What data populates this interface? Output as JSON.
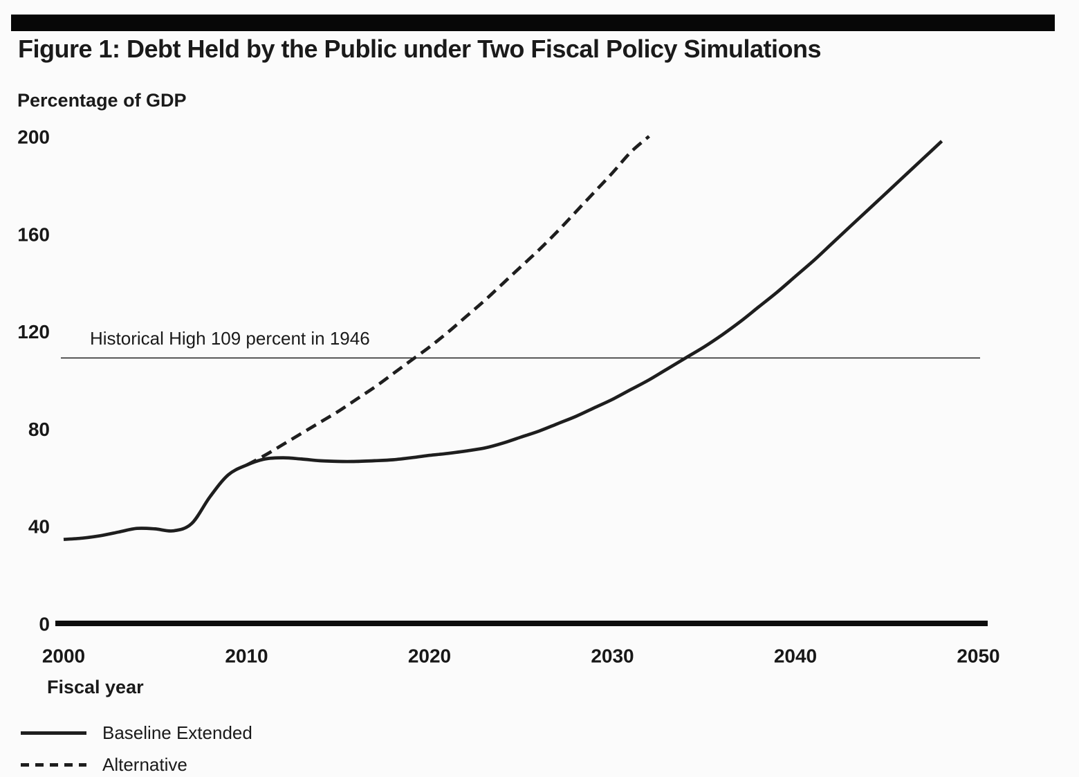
{
  "header": {
    "title": "Figure 1: Debt Held by the Public under Two Fiscal Policy Simulations"
  },
  "chart": {
    "y_axis_title": "Percentage of GDP",
    "x_axis_title": "Fiscal year",
    "annotation_text": "Historical High 109 percent in 1946",
    "ink_color": "#1e1e1e",
    "background_color": "#fbfbfb"
  },
  "legend": {
    "items": [
      {
        "label": "Baseline Extended",
        "style": "solid"
      },
      {
        "label": "Alternative",
        "style": "dashed"
      }
    ]
  },
  "chart_data": {
    "type": "line",
    "title": "Figure 1: Debt Held by the Public under Two Fiscal Policy Simulations",
    "xlabel": "Fiscal year",
    "ylabel": "Percentage of GDP",
    "xlim": [
      2000,
      2050
    ],
    "ylim": [
      0,
      200
    ],
    "x_ticks": [
      2000,
      2010,
      2020,
      2030,
      2040,
      2050
    ],
    "y_ticks": [
      0,
      40,
      80,
      120,
      160,
      200
    ],
    "grid": false,
    "legend_position": "bottom-left",
    "annotation": {
      "text": "Historical High 109 percent in 1946",
      "value": 109
    },
    "series": [
      {
        "name": "Baseline Extended",
        "style": "solid",
        "x": [
          2000,
          2001,
          2002,
          2003,
          2004,
          2005,
          2006,
          2007,
          2008,
          2009,
          2010,
          2011,
          2012,
          2013,
          2014,
          2015,
          2016,
          2017,
          2018,
          2019,
          2020,
          2021,
          2022,
          2023,
          2024,
          2025,
          2026,
          2027,
          2028,
          2029,
          2030,
          2031,
          2032,
          2033,
          2034,
          2035,
          2036,
          2037,
          2038,
          2039,
          2040,
          2041,
          2042,
          2043,
          2044,
          2045,
          2046,
          2047,
          2048
        ],
        "y": [
          34.5,
          35,
          36,
          37.5,
          39,
          38.8,
          38,
          41,
          52,
          61,
          65,
          67.5,
          68,
          67.5,
          66.8,
          66.5,
          66.5,
          66.8,
          67.2,
          68,
          69,
          69.8,
          70.8,
          72,
          74,
          76.5,
          79,
          82,
          85,
          88.5,
          92,
          96,
          100,
          104.5,
          109,
          113.5,
          118.5,
          124,
          130,
          136,
          142.5,
          149,
          156,
          163,
          170,
          177,
          184,
          191,
          198
        ]
      },
      {
        "name": "Alternative",
        "style": "dashed",
        "x": [
          2010,
          2011,
          2012,
          2013,
          2014,
          2015,
          2016,
          2017,
          2018,
          2019,
          2020,
          2021,
          2022,
          2023,
          2024,
          2025,
          2026,
          2027,
          2028,
          2029,
          2030,
          2031,
          2032
        ],
        "y": [
          65,
          69,
          73.5,
          78,
          82.5,
          87,
          92,
          97,
          102.5,
          108,
          113.5,
          119.5,
          126,
          132.5,
          139.5,
          146.5,
          153.5,
          161,
          169,
          177,
          185,
          193.5,
          200
        ]
      }
    ]
  }
}
